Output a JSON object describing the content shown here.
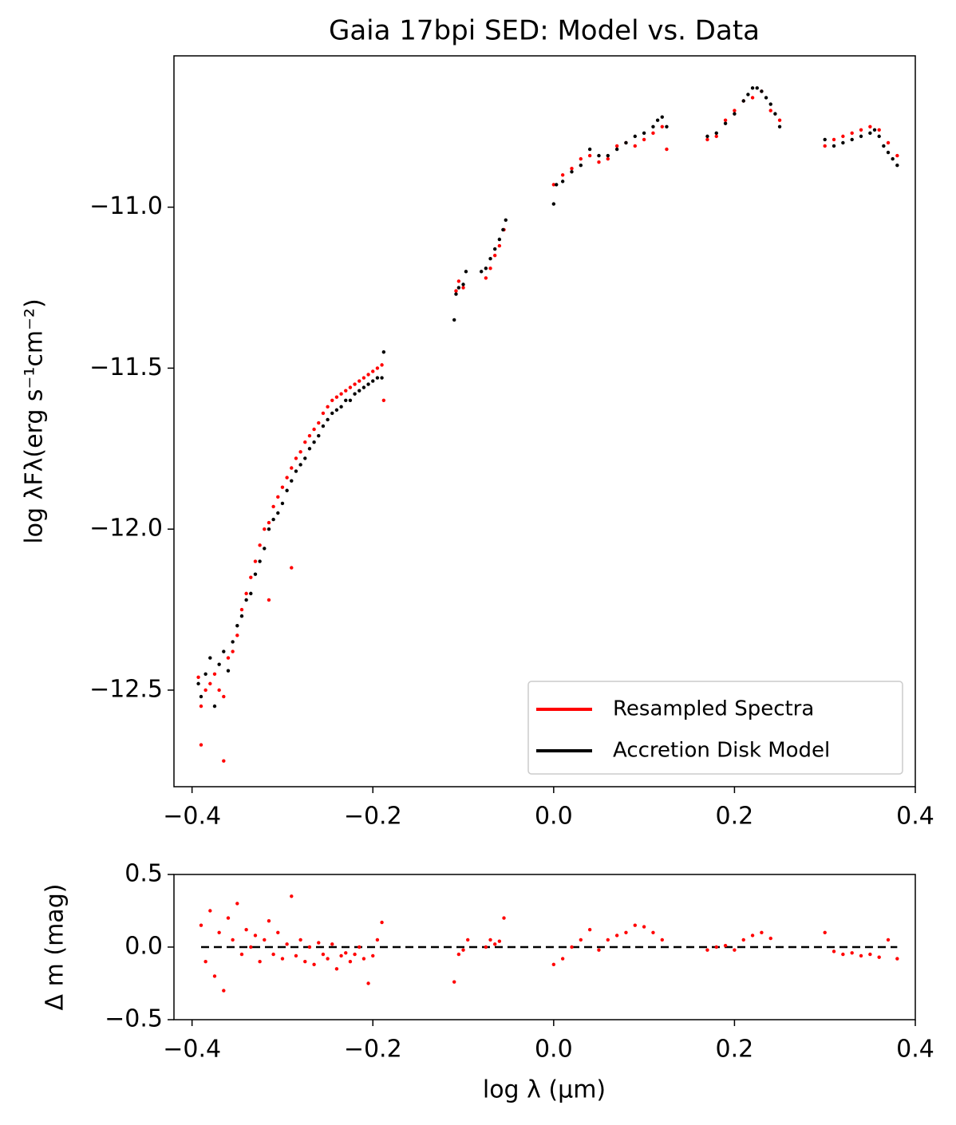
{
  "chart_data": [
    {
      "type": "scatter",
      "title": "Gaia 17bpi SED: Model vs. Data",
      "ylabel": "log λFλ(erg   s⁻¹cm⁻²)",
      "xlim": [
        -0.42,
        0.4
      ],
      "ylim": [
        -12.8,
        -10.53
      ],
      "xticks": [
        {
          "value": -0.4,
          "label": "−0.4"
        },
        {
          "value": -0.2,
          "label": "−0.2"
        },
        {
          "value": 0,
          "label": "0.0"
        },
        0.2,
        0.4
      ],
      "yticks": [
        {
          "value": -12.5,
          "label": "−12.5"
        },
        {
          "value": -12,
          "label": "−12.0"
        },
        {
          "value": -11.5,
          "label": "−11.5"
        },
        {
          "value": -11,
          "label": "−11.0"
        }
      ],
      "legend": "lower right",
      "series": [
        {
          "name": "Resampled Spectra",
          "color": "#ff0000",
          "x": [
            -0.393,
            -0.39,
            -0.385,
            -0.38,
            -0.375,
            -0.37,
            -0.365,
            -0.36,
            -0.355,
            -0.35,
            -0.345,
            -0.34,
            -0.335,
            -0.33,
            -0.325,
            -0.32,
            -0.315,
            -0.31,
            -0.305,
            -0.3,
            -0.295,
            -0.29,
            -0.285,
            -0.28,
            -0.275,
            -0.27,
            -0.265,
            -0.26,
            -0.255,
            -0.25,
            -0.245,
            -0.24,
            -0.235,
            -0.23,
            -0.225,
            -0.22,
            -0.215,
            -0.21,
            -0.205,
            -0.2,
            -0.195,
            -0.19,
            -0.188,
            -0.39,
            -0.365,
            -0.29,
            -0.315,
            -0.108,
            -0.105,
            -0.1,
            -0.075,
            -0.07,
            -0.065,
            -0.06,
            -0.055,
            0.0,
            0.01,
            0.02,
            0.03,
            0.04,
            0.05,
            0.06,
            0.07,
            0.08,
            0.09,
            0.1,
            0.11,
            0.12,
            0.125,
            0.17,
            0.18,
            0.19,
            0.2,
            0.21,
            0.22,
            0.23,
            0.24,
            0.25,
            0.3,
            0.31,
            0.32,
            0.33,
            0.34,
            0.35,
            0.36,
            0.37,
            0.38
          ],
          "values": [
            -12.46,
            -12.55,
            -12.5,
            -12.48,
            -12.45,
            -12.5,
            -12.52,
            -12.4,
            -12.38,
            -12.33,
            -12.25,
            -12.2,
            -12.15,
            -12.1,
            -12.05,
            -12.0,
            -11.98,
            -11.93,
            -11.9,
            -11.87,
            -11.84,
            -11.81,
            -11.78,
            -11.76,
            -11.73,
            -11.71,
            -11.69,
            -11.67,
            -11.64,
            -11.62,
            -11.6,
            -11.59,
            -11.58,
            -11.57,
            -11.56,
            -11.55,
            -11.54,
            -11.53,
            -11.52,
            -11.51,
            -11.5,
            -11.49,
            -11.6,
            -12.67,
            -12.72,
            -12.12,
            -12.22,
            -11.26,
            -11.23,
            -11.25,
            -11.22,
            -11.19,
            -11.15,
            -11.12,
            -11.07,
            -10.93,
            -10.9,
            -10.88,
            -10.85,
            -10.84,
            -10.86,
            -10.85,
            -10.81,
            -10.8,
            -10.81,
            -10.79,
            -10.77,
            -10.75,
            -10.82,
            -10.79,
            -10.78,
            -10.73,
            -10.7,
            -10.67,
            -10.66,
            -10.64,
            -10.7,
            -10.73,
            -10.81,
            -10.79,
            -10.78,
            -10.77,
            -10.76,
            -10.75,
            -10.76,
            -10.8,
            -10.84
          ]
        },
        {
          "name": "Accretion Disk Model",
          "color": "#000000",
          "x": [
            -0.393,
            -0.39,
            -0.385,
            -0.38,
            -0.375,
            -0.37,
            -0.365,
            -0.36,
            -0.355,
            -0.35,
            -0.345,
            -0.34,
            -0.335,
            -0.33,
            -0.325,
            -0.32,
            -0.315,
            -0.31,
            -0.305,
            -0.3,
            -0.295,
            -0.29,
            -0.285,
            -0.28,
            -0.275,
            -0.27,
            -0.265,
            -0.26,
            -0.255,
            -0.25,
            -0.245,
            -0.24,
            -0.235,
            -0.23,
            -0.225,
            -0.22,
            -0.215,
            -0.21,
            -0.205,
            -0.2,
            -0.195,
            -0.19,
            -0.188,
            -0.11,
            -0.108,
            -0.105,
            -0.1,
            -0.097,
            -0.08,
            -0.075,
            -0.07,
            -0.065,
            -0.06,
            -0.056,
            -0.053,
            0.0,
            0.003,
            0.01,
            0.02,
            0.03,
            0.04,
            0.05,
            0.06,
            0.07,
            0.08,
            0.09,
            0.1,
            0.11,
            0.115,
            0.12,
            0.125,
            0.17,
            0.18,
            0.19,
            0.2,
            0.21,
            0.215,
            0.22,
            0.225,
            0.23,
            0.235,
            0.24,
            0.245,
            0.25,
            0.3,
            0.31,
            0.32,
            0.33,
            0.34,
            0.35,
            0.355,
            0.36,
            0.365,
            0.37,
            0.375,
            0.38
          ],
          "values": [
            -12.48,
            -12.52,
            -12.45,
            -12.4,
            -12.55,
            -12.42,
            -12.38,
            -12.44,
            -12.35,
            -12.3,
            -12.27,
            -12.22,
            -12.2,
            -12.14,
            -12.1,
            -12.06,
            -12.0,
            -11.97,
            -11.95,
            -11.92,
            -11.88,
            -11.85,
            -11.82,
            -11.8,
            -11.78,
            -11.75,
            -11.73,
            -11.71,
            -11.68,
            -11.66,
            -11.64,
            -11.63,
            -11.62,
            -11.6,
            -11.6,
            -11.58,
            -11.57,
            -11.56,
            -11.55,
            -11.54,
            -11.53,
            -11.53,
            -11.45,
            -11.35,
            -11.27,
            -11.25,
            -11.24,
            -11.2,
            -11.2,
            -11.19,
            -11.16,
            -11.13,
            -11.1,
            -11.07,
            -11.04,
            -10.99,
            -10.93,
            -10.92,
            -10.89,
            -10.87,
            -10.82,
            -10.84,
            -10.84,
            -10.82,
            -10.8,
            -10.78,
            -10.77,
            -10.75,
            -10.73,
            -10.72,
            -10.75,
            -10.78,
            -10.77,
            -10.74,
            -10.71,
            -10.67,
            -10.65,
            -10.63,
            -10.63,
            -10.64,
            -10.66,
            -10.68,
            -10.71,
            -10.75,
            -10.79,
            -10.81,
            -10.8,
            -10.79,
            -10.78,
            -10.77,
            -10.76,
            -10.78,
            -10.81,
            -10.83,
            -10.85,
            -10.87
          ]
        }
      ]
    },
    {
      "type": "scatter",
      "ylabel": "Δ m (mag)",
      "xlabel": "log λ (μm)",
      "xlim": [
        -0.42,
        0.4
      ],
      "ylim": [
        -0.5,
        0.5
      ],
      "xticks": [
        {
          "value": -0.4,
          "label": "−0.4"
        },
        {
          "value": -0.2,
          "label": "−0.2"
        },
        {
          "value": 0,
          "label": "0.0"
        },
        0.2,
        0.4
      ],
      "yticks": [
        {
          "value": -0.5,
          "label": "−0.5"
        },
        {
          "value": 0,
          "label": "0.0"
        },
        0.5
      ],
      "hline": 0,
      "hline_color": "#000000",
      "series": [
        {
          "color": "#ff0000",
          "x": [
            -0.39,
            -0.385,
            -0.38,
            -0.375,
            -0.37,
            -0.365,
            -0.36,
            -0.355,
            -0.35,
            -0.345,
            -0.34,
            -0.335,
            -0.33,
            -0.325,
            -0.32,
            -0.315,
            -0.31,
            -0.305,
            -0.3,
            -0.295,
            -0.29,
            -0.285,
            -0.28,
            -0.275,
            -0.27,
            -0.265,
            -0.26,
            -0.255,
            -0.25,
            -0.245,
            -0.24,
            -0.235,
            -0.23,
            -0.225,
            -0.22,
            -0.215,
            -0.21,
            -0.205,
            -0.2,
            -0.195,
            -0.19,
            -0.11,
            -0.105,
            -0.1,
            -0.095,
            -0.075,
            -0.07,
            -0.065,
            -0.06,
            -0.055,
            0.0,
            0.01,
            0.02,
            0.03,
            0.04,
            0.05,
            0.06,
            0.07,
            0.08,
            0.09,
            0.1,
            0.11,
            0.12,
            0.17,
            0.18,
            0.19,
            0.2,
            0.21,
            0.22,
            0.23,
            0.24,
            0.3,
            0.31,
            0.32,
            0.33,
            0.34,
            0.35,
            0.36,
            0.37,
            0.38
          ],
          "values": [
            0.15,
            -0.1,
            0.25,
            -0.2,
            0.1,
            -0.3,
            0.2,
            0.05,
            0.3,
            -0.05,
            0.12,
            0.0,
            0.08,
            -0.1,
            0.05,
            0.18,
            -0.05,
            0.1,
            -0.08,
            0.02,
            0.35,
            -0.06,
            0.05,
            -0.1,
            0.0,
            -0.12,
            0.03,
            -0.05,
            -0.08,
            0.02,
            -0.15,
            -0.06,
            -0.04,
            -0.1,
            -0.05,
            0.0,
            -0.08,
            -0.25,
            -0.06,
            0.05,
            0.17,
            -0.24,
            -0.05,
            -0.02,
            0.05,
            0.0,
            0.05,
            0.02,
            0.04,
            0.2,
            -0.12,
            -0.08,
            0.0,
            0.05,
            0.12,
            -0.02,
            0.05,
            0.08,
            0.1,
            0.15,
            0.14,
            0.1,
            0.05,
            -0.02,
            0.0,
            0.01,
            -0.02,
            0.05,
            0.08,
            0.1,
            0.06,
            0.1,
            -0.03,
            -0.05,
            -0.04,
            -0.06,
            -0.05,
            -0.07,
            0.05,
            -0.08
          ]
        }
      ]
    }
  ]
}
